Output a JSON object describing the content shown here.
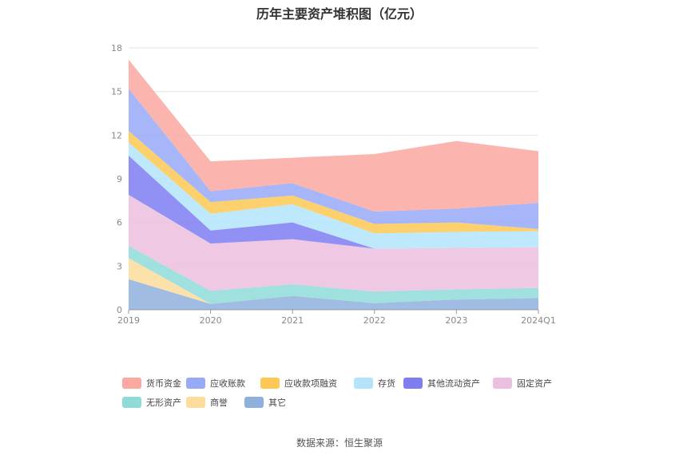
{
  "title": "历年主要资产堆积图（亿元）",
  "source": "数据来源：恒生聚源",
  "chart_data": {
    "type": "area",
    "stacked": true,
    "x": [
      "2019",
      "2020",
      "2021",
      "2022",
      "2023",
      "2024Q1"
    ],
    "ylim": [
      0,
      18
    ],
    "yticks": [
      "0",
      "3",
      "6",
      "9",
      "12",
      "15",
      "18"
    ],
    "grid": true,
    "legend_position": "bottom",
    "series": [
      {
        "name": "其它",
        "color": "#8fb0dd",
        "values": [
          2.1,
          0.4,
          0.95,
          0.45,
          0.7,
          0.8
        ]
      },
      {
        "name": "商誉",
        "color": "#fddc9c",
        "values": [
          1.45,
          0.0,
          0.0,
          0.0,
          0.0,
          0.0
        ]
      },
      {
        "name": "无形资产",
        "color": "#8fdbd8",
        "values": [
          0.85,
          0.9,
          0.8,
          0.8,
          0.7,
          0.7
        ]
      },
      {
        "name": "固定资产",
        "color": "#ecbfdf",
        "values": [
          3.5,
          3.25,
          3.1,
          2.95,
          2.85,
          2.8
        ]
      },
      {
        "name": "其他流动资产",
        "color": "#7e7ef3",
        "values": [
          2.7,
          0.9,
          1.15,
          0.0,
          0.0,
          0.0
        ]
      },
      {
        "name": "存货",
        "color": "#b3e4fb",
        "values": [
          0.9,
          1.15,
          1.25,
          1.05,
          1.1,
          1.1
        ]
      },
      {
        "name": "应收款项融资",
        "color": "#fdc855",
        "values": [
          0.8,
          0.8,
          0.6,
          0.65,
          0.65,
          0.15
        ]
      },
      {
        "name": "应收账款",
        "color": "#97a9f7",
        "values": [
          2.9,
          0.75,
          0.85,
          0.85,
          0.95,
          1.8
        ]
      },
      {
        "name": "货币资金",
        "color": "#fba8a0",
        "values": [
          2.0,
          2.05,
          1.75,
          3.95,
          4.65,
          3.55
        ]
      }
    ]
  }
}
